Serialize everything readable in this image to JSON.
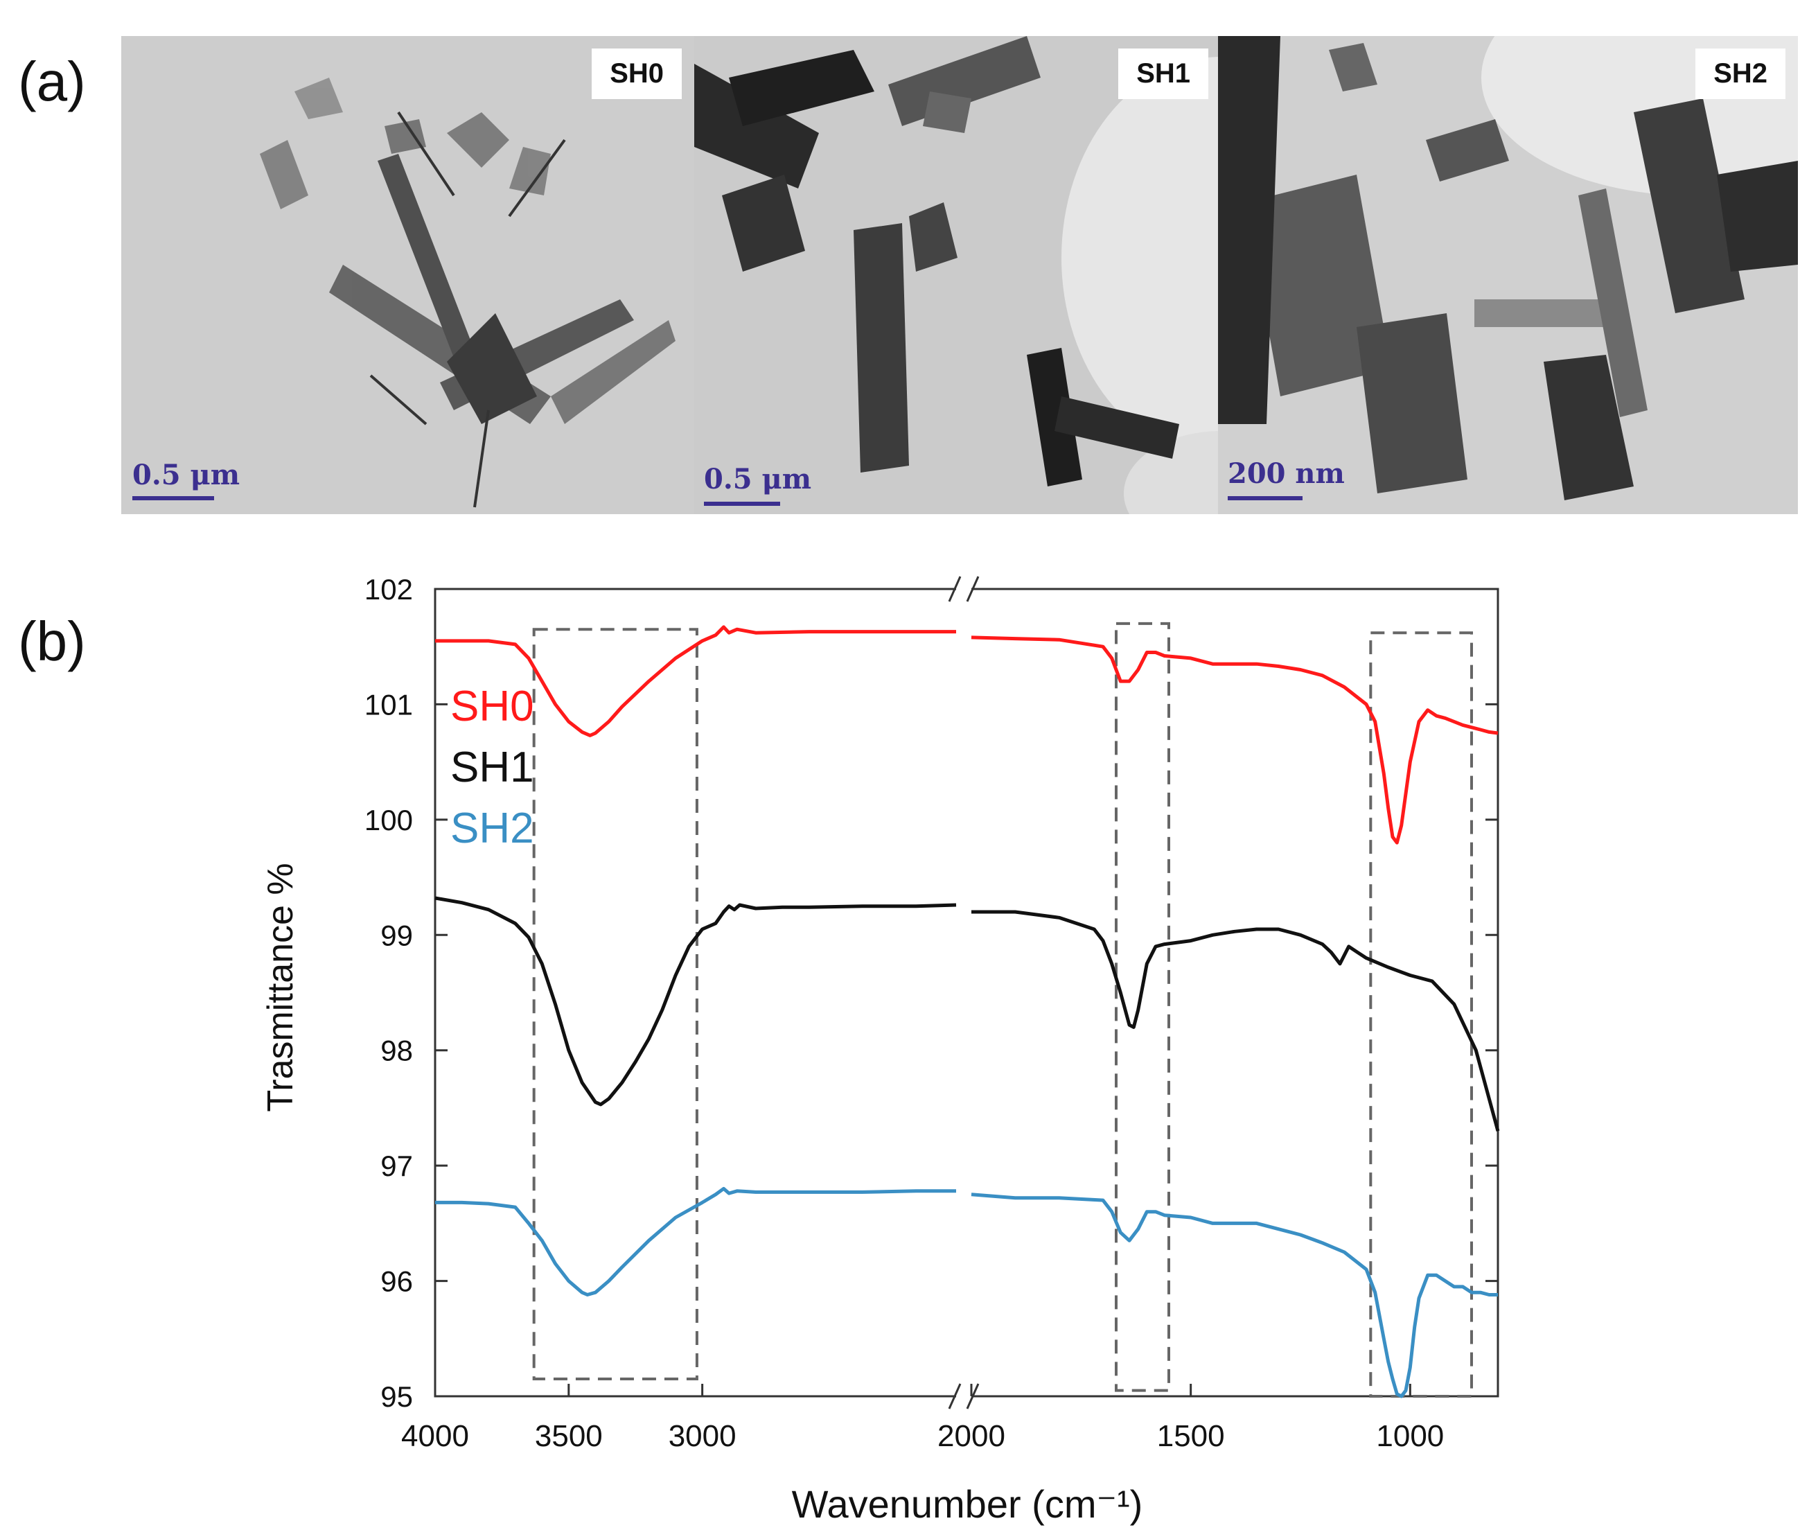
{
  "panel_labels": {
    "a": "(a)",
    "b": "(b)"
  },
  "tem_images": [
    {
      "sample": "SH0",
      "scale": "0.5 μm"
    },
    {
      "sample": "SH1",
      "scale": "0.5 μm"
    },
    {
      "sample": "SH2",
      "scale": "200 nm"
    }
  ],
  "chart_data": {
    "type": "line",
    "xlabel": "Wavenumber (cm⁻¹)",
    "ylabel": "Trasmittance %",
    "x_reversed": true,
    "x_axis_break": [
      2050,
      2000
    ],
    "xlim": [
      4000,
      800
    ],
    "ylim": [
      95,
      102
    ],
    "x_ticks": [
      4000,
      3500,
      3000,
      2000,
      1500,
      1000
    ],
    "y_ticks": [
      95,
      96,
      97,
      98,
      99,
      100,
      101,
      102
    ],
    "legend": {
      "placement": "top-left"
    },
    "highlight_regions": [
      {
        "x": [
          3630,
          3020
        ],
        "y": [
          95.15,
          101.65
        ]
      },
      {
        "x": [
          1670,
          1550
        ],
        "y": [
          95.05,
          101.7
        ]
      },
      {
        "x": [
          1090,
          860
        ],
        "y": [
          95.0,
          101.62
        ]
      }
    ],
    "series": [
      {
        "name": "SH0",
        "color": "#ff1a1a",
        "x": [
          4000,
          3900,
          3800,
          3700,
          3650,
          3600,
          3550,
          3500,
          3450,
          3420,
          3400,
          3350,
          3300,
          3200,
          3100,
          3000,
          2950,
          2920,
          2900,
          2870,
          2800,
          2600,
          2400,
          2200,
          2050,
          2000,
          1900,
          1800,
          1700,
          1680,
          1660,
          1640,
          1620,
          1600,
          1580,
          1560,
          1500,
          1450,
          1400,
          1350,
          1300,
          1250,
          1200,
          1150,
          1100,
          1080,
          1060,
          1050,
          1040,
          1030,
          1020,
          1000,
          980,
          960,
          940,
          920,
          900,
          880,
          860,
          840,
          820,
          800
        ],
        "y": [
          101.55,
          101.55,
          101.55,
          101.52,
          101.4,
          101.2,
          101.0,
          100.85,
          100.76,
          100.73,
          100.75,
          100.85,
          100.98,
          101.2,
          101.4,
          101.55,
          101.6,
          101.67,
          101.62,
          101.65,
          101.62,
          101.63,
          101.63,
          101.63,
          101.63,
          101.58,
          101.57,
          101.56,
          101.5,
          101.4,
          101.2,
          101.2,
          101.3,
          101.45,
          101.45,
          101.42,
          101.4,
          101.35,
          101.35,
          101.35,
          101.33,
          101.3,
          101.25,
          101.15,
          101.0,
          100.85,
          100.4,
          100.1,
          99.85,
          99.8,
          99.95,
          100.5,
          100.85,
          100.95,
          100.9,
          100.88,
          100.85,
          100.82,
          100.8,
          100.78,
          100.76,
          100.75
        ]
      },
      {
        "name": "SH1",
        "color": "#111111",
        "x": [
          4000,
          3900,
          3800,
          3700,
          3650,
          3600,
          3550,
          3500,
          3450,
          3400,
          3380,
          3350,
          3300,
          3250,
          3200,
          3150,
          3100,
          3050,
          3000,
          2950,
          2920,
          2900,
          2880,
          2860,
          2800,
          2700,
          2600,
          2400,
          2200,
          2050,
          2000,
          1900,
          1800,
          1720,
          1700,
          1680,
          1660,
          1640,
          1630,
          1620,
          1600,
          1580,
          1560,
          1500,
          1450,
          1400,
          1350,
          1300,
          1250,
          1200,
          1180,
          1160,
          1140,
          1120,
          1100,
          1050,
          1000,
          950,
          900,
          850,
          800
        ],
        "y": [
          99.32,
          99.28,
          99.22,
          99.1,
          98.98,
          98.75,
          98.4,
          98.0,
          97.72,
          97.55,
          97.53,
          97.58,
          97.72,
          97.9,
          98.1,
          98.35,
          98.65,
          98.9,
          99.05,
          99.1,
          99.2,
          99.25,
          99.22,
          99.26,
          99.23,
          99.24,
          99.24,
          99.25,
          99.25,
          99.26,
          99.2,
          99.2,
          99.15,
          99.05,
          98.95,
          98.75,
          98.5,
          98.22,
          98.2,
          98.35,
          98.75,
          98.9,
          98.92,
          98.95,
          99.0,
          99.03,
          99.05,
          99.05,
          99.0,
          98.92,
          98.85,
          98.75,
          98.9,
          98.85,
          98.8,
          98.72,
          98.65,
          98.6,
          98.4,
          98.0,
          97.3
        ]
      },
      {
        "name": "SH2",
        "color": "#3a8fc4",
        "x": [
          4000,
          3900,
          3800,
          3700,
          3650,
          3600,
          3550,
          3500,
          3450,
          3430,
          3400,
          3350,
          3300,
          3200,
          3100,
          3000,
          2950,
          2920,
          2900,
          2870,
          2800,
          2600,
          2400,
          2200,
          2050,
          2000,
          1900,
          1800,
          1700,
          1680,
          1660,
          1640,
          1620,
          1600,
          1580,
          1560,
          1500,
          1450,
          1400,
          1350,
          1300,
          1250,
          1200,
          1150,
          1100,
          1080,
          1060,
          1050,
          1040,
          1030,
          1020,
          1010,
          1000,
          990,
          980,
          960,
          940,
          920,
          900,
          880,
          860,
          840,
          820,
          800
        ],
        "y": [
          96.68,
          96.68,
          96.67,
          96.64,
          96.5,
          96.35,
          96.15,
          96.0,
          95.9,
          95.88,
          95.9,
          96.0,
          96.12,
          96.35,
          96.55,
          96.68,
          96.75,
          96.8,
          96.76,
          96.78,
          96.77,
          96.77,
          96.77,
          96.78,
          96.78,
          96.75,
          96.72,
          96.72,
          96.7,
          96.6,
          96.42,
          96.35,
          96.45,
          96.6,
          96.6,
          96.57,
          96.55,
          96.5,
          96.5,
          96.5,
          96.45,
          96.4,
          96.33,
          96.25,
          96.1,
          95.9,
          95.5,
          95.3,
          95.15,
          95.02,
          95.0,
          95.05,
          95.25,
          95.6,
          95.85,
          96.05,
          96.05,
          96.0,
          95.95,
          95.95,
          95.9,
          95.9,
          95.88,
          95.88
        ]
      }
    ]
  }
}
